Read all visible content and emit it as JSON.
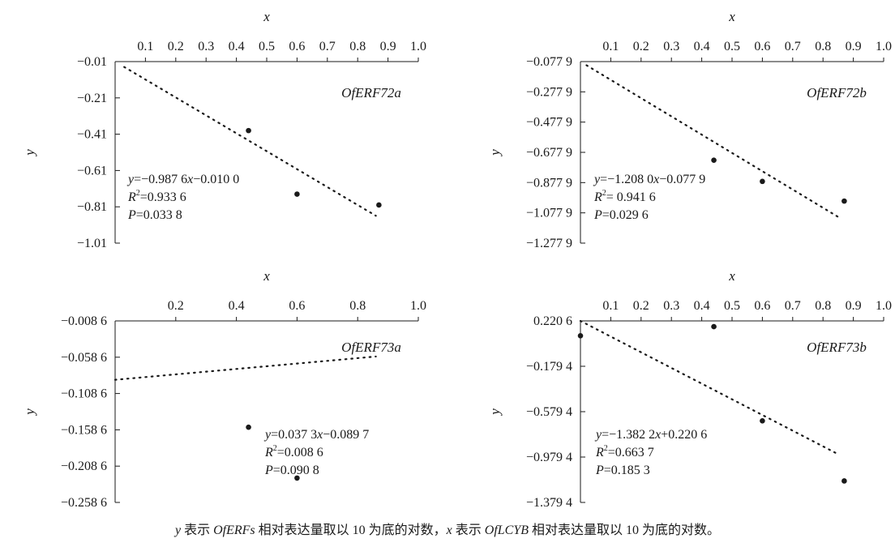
{
  "chart_data": [
    {
      "type": "scatter",
      "gene": "OfERF72a",
      "xlabel": "x",
      "ylabel": "y",
      "xticks": [
        "0.1",
        "0.2",
        "0.3",
        "0.4",
        "0.5",
        "0.6",
        "0.7",
        "0.8",
        "0.9",
        "1.0"
      ],
      "xtick_values": [
        0.1,
        0.2,
        0.3,
        0.4,
        0.5,
        0.6,
        0.7,
        0.8,
        0.9,
        1.0
      ],
      "yticks": [
        "−0.01",
        "−0.21",
        "−0.41",
        "−0.61",
        "−0.81",
        "−1.01"
      ],
      "xlim": [
        0,
        1.0
      ],
      "ylim": [
        -1.01,
        -0.01
      ],
      "points": [
        {
          "x": 0.44,
          "y": -0.39
        },
        {
          "x": 0.6,
          "y": -0.74
        },
        {
          "x": 0.87,
          "y": -0.8
        }
      ],
      "fit": {
        "slope": -0.9876,
        "intercept": -0.01,
        "x_range": [
          0.03,
          0.86
        ]
      },
      "equation": {
        "y": "y",
        "rest1": "=−0.987 6",
        "x": "x",
        "rest2": "−0.010 0"
      },
      "r2": {
        "r": "R",
        "sup": "2",
        "val": "=0.933 6"
      },
      "p": {
        "p": "P",
        "val": "=0.033 8"
      }
    },
    {
      "type": "scatter",
      "gene": "OfERF72b",
      "xlabel": "x",
      "ylabel": "y",
      "xticks": [
        "0.1",
        "0.2",
        "0.3",
        "0.4",
        "0.5",
        "0.6",
        "0.7",
        "0.8",
        "0.9",
        "1.0"
      ],
      "xtick_values": [
        0.1,
        0.2,
        0.3,
        0.4,
        0.5,
        0.6,
        0.7,
        0.8,
        0.9,
        1.0
      ],
      "yticks": [
        "−0.077 9",
        "−0.277 9",
        "−0.477 9",
        "−0.677 9",
        "−0.877 9",
        "−1.077 9",
        "−1.277 9"
      ],
      "xlim": [
        0,
        1.0
      ],
      "ylim": [
        -1.2779,
        -0.0779
      ],
      "points": [
        {
          "x": 0.44,
          "y": -0.73
        },
        {
          "x": 0.6,
          "y": -0.87
        },
        {
          "x": 0.87,
          "y": -1.0
        }
      ],
      "fit": {
        "slope": -1.208,
        "intercept": -0.0779,
        "x_range": [
          0.02,
          0.86
        ]
      },
      "equation": {
        "y": "y",
        "rest1": "=−1.208 0",
        "x": "x",
        "rest2": "−0.077 9"
      },
      "r2": {
        "r": "R",
        "sup": "2",
        "val": "= 0.941 6"
      },
      "p": {
        "p": "P",
        "val": "=0.029 6"
      }
    },
    {
      "type": "scatter",
      "gene": "OfERF73a",
      "xlabel": "x",
      "ylabel": "y",
      "xticks": [
        "0.2",
        "0.4",
        "0.6",
        "0.8",
        "1.0"
      ],
      "xtick_values": [
        0.2,
        0.4,
        0.6,
        0.8,
        1.0
      ],
      "yticks": [
        "−0.008 6",
        "−0.058 6",
        "−0.108 6",
        "−0.158 6",
        "−0.208 6",
        "−0.258 6"
      ],
      "xlim": [
        0,
        1.0
      ],
      "ylim": [
        -0.2586,
        -0.0086
      ],
      "points": [
        {
          "x": 0.44,
          "y": -0.155
        },
        {
          "x": 0.6,
          "y": -0.225
        }
      ],
      "fit": {
        "slope": 0.0373,
        "intercept": -0.0897,
        "x_range": [
          0.0,
          0.86
        ]
      },
      "equation": {
        "y": "y",
        "rest1": "=0.037 3",
        "x": "x",
        "rest2": "−0.089 7"
      },
      "r2": {
        "r": "R",
        "sup": "2",
        "val": "=0.008 6"
      },
      "p": {
        "p": "P",
        "val": "=0.090 8"
      }
    },
    {
      "type": "scatter",
      "gene": "OfERF73b",
      "xlabel": "x",
      "ylabel": "y",
      "xticks": [
        "0.1",
        "0.2",
        "0.3",
        "0.4",
        "0.5",
        "0.6",
        "0.7",
        "0.8",
        "0.9",
        "1.0"
      ],
      "xtick_values": [
        0.1,
        0.2,
        0.3,
        0.4,
        0.5,
        0.6,
        0.7,
        0.8,
        0.9,
        1.0
      ],
      "yticks": [
        "0.220 6",
        "−0.179 4",
        "−0.579 4",
        "−0.979 4",
        "−1.379 4"
      ],
      "xlim": [
        0,
        1.0
      ],
      "ylim": [
        -1.3794,
        0.2206
      ],
      "points": [
        {
          "x": 0.0,
          "y": 0.09
        },
        {
          "x": 0.44,
          "y": 0.17
        },
        {
          "x": 0.6,
          "y": -0.66
        },
        {
          "x": 0.87,
          "y": -1.19
        }
      ],
      "fit": {
        "slope": -1.3822,
        "intercept": 0.2206,
        "x_range": [
          0.0,
          0.85
        ]
      },
      "equation": {
        "y": "y",
        "rest1": "=−1.382 2",
        "x": "x",
        "rest2": "+0.220 6"
      },
      "r2": {
        "r": "R",
        "sup": "2",
        "val": "=0.663 7"
      },
      "p": {
        "p": "P",
        "val": "=0.185 3"
      }
    }
  ],
  "caption": {
    "y": "y",
    "t1": " 表示 ",
    "genes": "OfERFs",
    "t2": " 相对表达量取以 10 为底的对数，",
    "x": "x",
    "t3": " 表示 ",
    "ref": "OfLCYB",
    "t4": " 相对表达量取以 10 为底的对数。"
  }
}
